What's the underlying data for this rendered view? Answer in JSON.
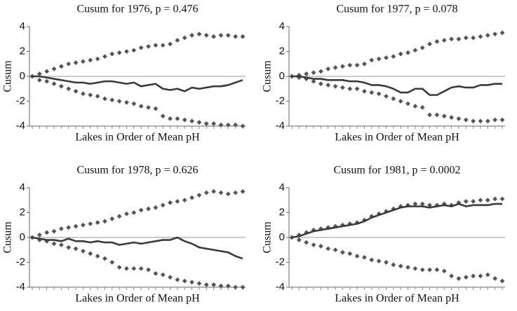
{
  "chart_data": [
    {
      "type": "line",
      "title": "Cusum for 1976, p = 0.476",
      "xlabel": "Lakes in Order of Mean pH",
      "ylabel": "Cusum",
      "ylim": [
        -4,
        4
      ],
      "yticks": [
        -4,
        -2,
        0,
        2,
        4
      ],
      "zero_line": true,
      "series": [
        {
          "color": "#555555",
          "marker": "diamond",
          "values": [
            0,
            0.2,
            0.4,
            0.6,
            0.8,
            1.0,
            1.1,
            1.2,
            1.3,
            1.4,
            1.6,
            1.8,
            1.9,
            2.0,
            2.1,
            2.3,
            2.4,
            2.5,
            2.5,
            2.6,
            2.9,
            3.1,
            3.3,
            3.4,
            3.3,
            3.2,
            3.3,
            3.3,
            3.2,
            3.2
          ]
        },
        {
          "color": "#555555",
          "marker": "diamond",
          "values": [
            0,
            -0.3,
            -0.4,
            -0.6,
            -0.8,
            -1.0,
            -1.2,
            -1.4,
            -1.5,
            -1.6,
            -1.8,
            -1.9,
            -2.0,
            -2.1,
            -2.2,
            -2.4,
            -2.5,
            -2.6,
            -3.2,
            -3.4,
            -3.4,
            -3.5,
            -3.6,
            -3.7,
            -3.8,
            -3.8,
            -3.9,
            -3.9,
            -3.9,
            -4.0
          ]
        },
        {
          "color": "#3a3a3a",
          "marker": "none",
          "values": [
            0,
            0,
            -0.1,
            -0.2,
            -0.3,
            -0.4,
            -0.5,
            -0.5,
            -0.6,
            -0.5,
            -0.4,
            -0.4,
            -0.5,
            -0.6,
            -0.5,
            -0.8,
            -0.7,
            -0.6,
            -1.0,
            -1.1,
            -1.0,
            -1.2,
            -0.9,
            -1.0,
            -0.9,
            -0.8,
            -0.8,
            -0.7,
            -0.5,
            -0.3
          ]
        }
      ]
    },
    {
      "type": "line",
      "title": "Cusum for 1977, p = 0.078",
      "xlabel": "Lakes in Order of Mean pH",
      "ylabel": "Cusum",
      "ylim": [
        -4,
        4
      ],
      "yticks": [
        -4,
        -2,
        0,
        2,
        4
      ],
      "zero_line": true,
      "series": [
        {
          "color": "#555555",
          "marker": "diamond",
          "values": [
            0,
            0.1,
            0.2,
            0.3,
            0.4,
            0.6,
            0.7,
            0.8,
            0.9,
            0.9,
            1.0,
            1.3,
            1.4,
            1.5,
            1.6,
            1.8,
            1.9,
            2.1,
            2.3,
            2.6,
            2.8,
            2.9,
            3.0,
            3.0,
            3.1,
            3.1,
            3.2,
            3.3,
            3.4,
            3.5
          ]
        },
        {
          "color": "#555555",
          "marker": "diamond",
          "values": [
            0,
            -0.1,
            -0.2,
            -0.4,
            -0.6,
            -0.7,
            -0.8,
            -0.9,
            -1.0,
            -1.0,
            -1.2,
            -1.3,
            -1.4,
            -1.6,
            -1.8,
            -2.0,
            -2.2,
            -2.4,
            -2.5,
            -3.1,
            -3.1,
            -3.2,
            -3.3,
            -3.4,
            -3.5,
            -3.6,
            -3.6,
            -3.6,
            -3.5,
            -3.5
          ]
        },
        {
          "color": "#3a3a3a",
          "marker": "none",
          "values": [
            0,
            0,
            -0.1,
            -0.2,
            -0.2,
            -0.3,
            -0.3,
            -0.3,
            -0.4,
            -0.4,
            -0.5,
            -0.7,
            -0.7,
            -0.8,
            -1.0,
            -1.3,
            -1.3,
            -1.0,
            -1.0,
            -1.5,
            -1.5,
            -1.2,
            -0.9,
            -0.8,
            -0.9,
            -0.9,
            -0.7,
            -0.7,
            -0.6,
            -0.6
          ]
        }
      ]
    },
    {
      "type": "line",
      "title": "Cusum for 1978, p = 0.626",
      "xlabel": "Lakes in Order of Mean pH",
      "ylabel": "Cusum",
      "ylim": [
        -4,
        4
      ],
      "yticks": [
        -4,
        -2,
        0,
        2,
        4
      ],
      "zero_line": true,
      "series": [
        {
          "color": "#555555",
          "marker": "diamond",
          "values": [
            0,
            0.2,
            0.4,
            0.5,
            0.7,
            0.8,
            0.9,
            1.0,
            1.1,
            1.2,
            1.3,
            1.5,
            1.7,
            1.9,
            2.0,
            2.2,
            2.3,
            2.4,
            2.6,
            2.8,
            2.9,
            3.0,
            3.2,
            3.4,
            3.6,
            3.7,
            3.6,
            3.5,
            3.6,
            3.7
          ]
        },
        {
          "color": "#555555",
          "marker": "diamond",
          "values": [
            0,
            -0.2,
            -0.3,
            -0.5,
            -0.6,
            -0.8,
            -0.9,
            -1.1,
            -1.3,
            -1.5,
            -1.7,
            -2.0,
            -2.4,
            -2.5,
            -2.5,
            -2.5,
            -2.6,
            -2.9,
            -3.0,
            -3.2,
            -3.4,
            -3.5,
            -3.6,
            -3.7,
            -3.8,
            -3.8,
            -3.9,
            -3.9,
            -4.0,
            -4.0
          ]
        },
        {
          "color": "#3a3a3a",
          "marker": "none",
          "values": [
            0,
            -0.1,
            -0.2,
            -0.2,
            -0.3,
            -0.1,
            -0.3,
            -0.3,
            -0.4,
            -0.3,
            -0.4,
            -0.4,
            -0.6,
            -0.5,
            -0.4,
            -0.5,
            -0.4,
            -0.3,
            -0.2,
            -0.2,
            0,
            -0.3,
            -0.5,
            -0.8,
            -0.9,
            -1.0,
            -1.1,
            -1.2,
            -1.5,
            -1.7
          ]
        }
      ]
    },
    {
      "type": "line",
      "title": "Cusum for 1981, p = 0.0002",
      "xlabel": "Lakes in Order of Mean pH",
      "ylabel": "Cusum",
      "ylim": [
        -4,
        4
      ],
      "yticks": [
        -4,
        -2,
        0,
        2,
        4
      ],
      "zero_line": true,
      "series": [
        {
          "color": "#555555",
          "marker": "diamond",
          "values": [
            0,
            0.2,
            0.4,
            0.6,
            0.7,
            0.8,
            0.9,
            1.0,
            1.1,
            1.2,
            1.4,
            1.7,
            1.9,
            2.1,
            2.3,
            2.5,
            2.6,
            2.7,
            2.7,
            2.6,
            2.6,
            2.7,
            2.6,
            2.8,
            2.9,
            2.9,
            3.0,
            3.0,
            3.1,
            3.1
          ]
        },
        {
          "color": "#555555",
          "marker": "diamond",
          "values": [
            0,
            -0.2,
            -0.4,
            -0.6,
            -0.7,
            -0.9,
            -1.0,
            -1.2,
            -1.3,
            -1.5,
            -1.6,
            -1.8,
            -1.9,
            -2.0,
            -2.2,
            -2.3,
            -2.4,
            -2.5,
            -2.6,
            -2.6,
            -2.6,
            -2.7,
            -3.1,
            -3.3,
            -3.2,
            -3.1,
            -3.1,
            -3.0,
            -3.3,
            -3.5
          ]
        },
        {
          "color": "#3a3a3a",
          "marker": "none",
          "values": [
            0,
            0.1,
            0.3,
            0.5,
            0.6,
            0.7,
            0.8,
            0.9,
            1.0,
            1.1,
            1.3,
            1.6,
            1.8,
            2.0,
            2.2,
            2.4,
            2.5,
            2.5,
            2.5,
            2.4,
            2.5,
            2.6,
            2.5,
            2.7,
            2.5,
            2.6,
            2.6,
            2.6,
            2.7,
            2.7
          ]
        }
      ]
    }
  ]
}
